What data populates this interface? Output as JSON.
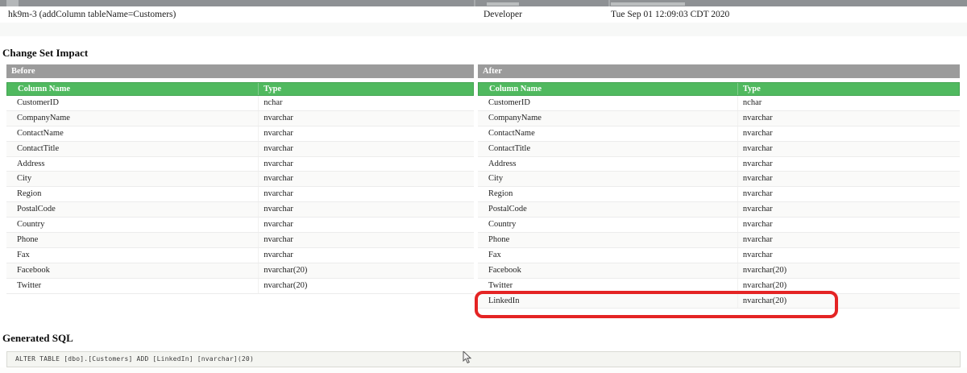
{
  "changeset": {
    "id": "hk9m-3 (addColumn tableName=Customers)",
    "author": "Developer",
    "date": "Tue Sep 01 12:09:03 CDT 2020"
  },
  "impact": {
    "title": "Change Set Impact",
    "before": {
      "label": "Before",
      "columns": [
        "Column Name",
        "Type"
      ],
      "rows": [
        [
          "CustomerID",
          "nchar"
        ],
        [
          "CompanyName",
          "nvarchar"
        ],
        [
          "ContactName",
          "nvarchar"
        ],
        [
          "ContactTitle",
          "nvarchar"
        ],
        [
          "Address",
          "nvarchar"
        ],
        [
          "City",
          "nvarchar"
        ],
        [
          "Region",
          "nvarchar"
        ],
        [
          "PostalCode",
          "nvarchar"
        ],
        [
          "Country",
          "nvarchar"
        ],
        [
          "Phone",
          "nvarchar"
        ],
        [
          "Fax",
          "nvarchar"
        ],
        [
          "Facebook",
          "nvarchar(20)"
        ],
        [
          "Twitter",
          "nvarchar(20)"
        ]
      ]
    },
    "after": {
      "label": "After",
      "columns": [
        "Column Name",
        "Type"
      ],
      "rows": [
        [
          "CustomerID",
          "nchar"
        ],
        [
          "CompanyName",
          "nvarchar"
        ],
        [
          "ContactName",
          "nvarchar"
        ],
        [
          "ContactTitle",
          "nvarchar"
        ],
        [
          "Address",
          "nvarchar"
        ],
        [
          "City",
          "nvarchar"
        ],
        [
          "Region",
          "nvarchar"
        ],
        [
          "PostalCode",
          "nvarchar"
        ],
        [
          "Country",
          "nvarchar"
        ],
        [
          "Phone",
          "nvarchar"
        ],
        [
          "Fax",
          "nvarchar"
        ],
        [
          "Facebook",
          "nvarchar(20)"
        ],
        [
          "Twitter",
          "nvarchar(20)"
        ],
        [
          "LinkedIn",
          "nvarchar(20)"
        ]
      ],
      "highlighted_row": "LinkedIn"
    }
  },
  "sql": {
    "title": "Generated SQL",
    "code": "ALTER TABLE [dbo].[Customers] ADD [LinkedIn] [nvarchar](20)"
  },
  "colors": {
    "header_green": "#50b95f",
    "header_gray": "#9b9b9b",
    "topbar_gray": "#8e9194",
    "highlight_red": "#e42424",
    "sql_bg": "#f4f5f1"
  }
}
